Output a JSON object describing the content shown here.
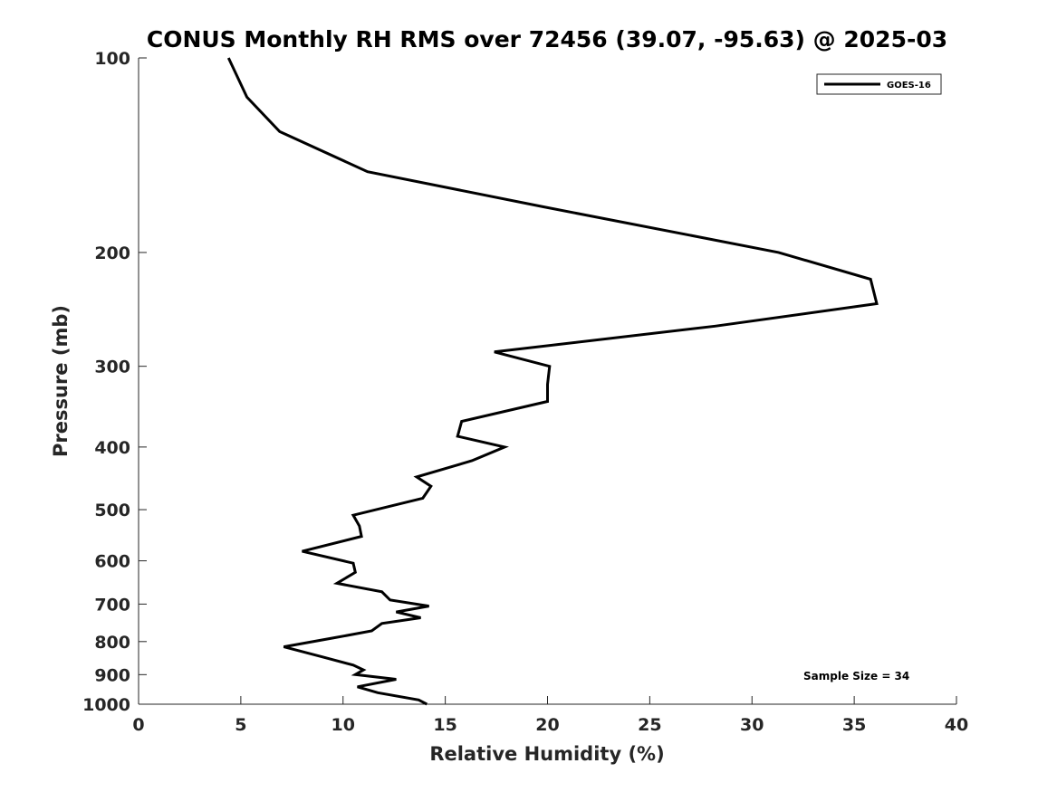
{
  "chart_data": {
    "type": "line",
    "title": "CONUS Monthly RH RMS over 72456 (39.07, -95.63) @ 2025-03",
    "xlabel": "Relative Humidity (%)",
    "ylabel": "Pressure (mb)",
    "xlim": [
      0,
      40
    ],
    "ylim": [
      100,
      1000
    ],
    "y_scale": "log",
    "y_reversed": true,
    "x_ticks": [
      "0",
      "5",
      "10",
      "15",
      "20",
      "25",
      "30",
      "35",
      "40"
    ],
    "y_ticks": [
      "100",
      "200",
      "300",
      "400",
      "500",
      "600",
      "700",
      "800",
      "900",
      "1000"
    ],
    "grid": false,
    "legend_position": "top-right",
    "annotation": "Sample Size = 34",
    "series": [
      {
        "name": "GOES-16",
        "color": "#000000",
        "x": [
          4.4,
          5.3,
          6.9,
          11.2,
          19.8,
          31.3,
          35.8,
          36.1,
          28.2,
          17.4,
          20.1,
          20.0,
          20.0,
          15.8,
          15.6,
          17.9,
          16.3,
          13.6,
          14.3,
          13.9,
          10.5,
          10.8,
          10.9,
          8.0,
          10.5,
          10.6,
          9.7,
          11.9,
          12.3,
          14.2,
          12.6,
          13.8,
          11.9,
          11.4,
          9.5,
          7.1,
          9.0,
          10.5,
          11.0,
          10.6,
          12.6,
          10.7,
          11.7,
          13.7,
          14.1
        ],
        "y": [
          100,
          115,
          130,
          150,
          170,
          200,
          220,
          240,
          260,
          285,
          300,
          320,
          340,
          365,
          385,
          400,
          420,
          445,
          460,
          480,
          510,
          530,
          550,
          580,
          605,
          625,
          650,
          670,
          690,
          705,
          720,
          735,
          750,
          770,
          790,
          815,
          845,
          870,
          885,
          900,
          915,
          940,
          960,
          985,
          1000
        ]
      }
    ]
  }
}
